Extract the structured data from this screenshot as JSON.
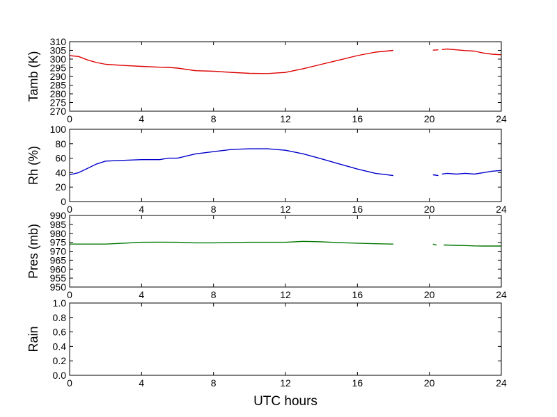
{
  "chart_data": [
    {
      "type": "line",
      "ylabel": "Tamb (K)",
      "xlabel": "",
      "xlim": [
        0,
        24
      ],
      "ylim": [
        270,
        310
      ],
      "xticks": [
        0,
        4,
        8,
        12,
        16,
        20,
        24
      ],
      "yticks": [
        270,
        275,
        280,
        285,
        290,
        295,
        300,
        305,
        310
      ],
      "grid": false,
      "series": [
        {
          "color": "#dd0000",
          "segments": [
            {
              "x": [
                0,
                0.5,
                1,
                1.5,
                2,
                3,
                4,
                5,
                5.5,
                6,
                7,
                8,
                9,
                10,
                11,
                12,
                13,
                14,
                15,
                16,
                17,
                18
              ],
              "y": [
                302,
                301.5,
                299.5,
                298,
                297,
                296.3,
                295.8,
                295.3,
                295.2,
                294.8,
                293.3,
                293,
                292.3,
                291.8,
                291.7,
                292.3,
                294.5,
                297,
                299.5,
                302,
                304,
                305
              ]
            },
            {
              "x": [
                20.2,
                20.5
              ],
              "y": [
                305.1,
                305.3
              ]
            },
            {
              "x": [
                20.7,
                21,
                21.5,
                22,
                22.5,
                23,
                23.5,
                24
              ],
              "y": [
                305.5,
                305.8,
                305.3,
                304.9,
                304.6,
                303.5,
                302.8,
                302.5
              ]
            }
          ]
        }
      ]
    },
    {
      "type": "line",
      "ylabel": "Rh (%)",
      "xlabel": "",
      "xlim": [
        0,
        24
      ],
      "ylim": [
        0,
        100
      ],
      "xticks": [
        0,
        4,
        8,
        12,
        16,
        20,
        24
      ],
      "yticks": [
        0,
        20,
        40,
        60,
        80,
        100
      ],
      "grid": false,
      "series": [
        {
          "color": "#0000cc",
          "segments": [
            {
              "x": [
                0,
                0.5,
                1,
                1.5,
                2,
                3,
                4,
                5,
                5.5,
                6,
                7,
                8,
                9,
                10,
                11,
                12,
                13,
                14,
                15,
                16,
                17,
                18
              ],
              "y": [
                37,
                40,
                46,
                52,
                56,
                57,
                58,
                58,
                60,
                60,
                66,
                69,
                72,
                73,
                73,
                71,
                66,
                59,
                52,
                45,
                39,
                36
              ]
            },
            {
              "x": [
                20.2,
                20.5
              ],
              "y": [
                37,
                36
              ]
            },
            {
              "x": [
                20.7,
                21,
                21.5,
                22,
                22.5,
                23,
                23.5,
                24
              ],
              "y": [
                38,
                39,
                38,
                39,
                38,
                40,
                42,
                43
              ]
            }
          ]
        }
      ]
    },
    {
      "type": "line",
      "ylabel": "Pres (mb)",
      "xlabel": "",
      "xlim": [
        0,
        24
      ],
      "ylim": [
        950,
        990
      ],
      "xticks": [
        0,
        4,
        8,
        12,
        16,
        20,
        24
      ],
      "yticks": [
        950,
        955,
        960,
        965,
        970,
        975,
        980,
        985,
        990
      ],
      "grid": false,
      "series": [
        {
          "color": "#007700",
          "segments": [
            {
              "x": [
                0,
                1,
                2,
                3,
                4,
                5,
                6,
                7,
                8,
                9,
                10,
                11,
                12,
                13,
                14,
                15,
                16,
                17,
                18
              ],
              "y": [
                974,
                974,
                974,
                974.5,
                975,
                975.1,
                975,
                974.7,
                974.7,
                974.9,
                975,
                975,
                975,
                975.5,
                975.3,
                974.8,
                974.5,
                974.2,
                974
              ]
            },
            {
              "x": [
                20.2,
                20.4
              ],
              "y": [
                974,
                973.4
              ]
            },
            {
              "x": [
                20.8,
                21.5,
                22,
                22.5,
                23,
                23.5,
                24
              ],
              "y": [
                973.5,
                973.3,
                973.2,
                973,
                972.9,
                972.9,
                972.9
              ]
            }
          ]
        }
      ]
    },
    {
      "type": "line",
      "ylabel": "Rain",
      "xlabel": "UTC hours",
      "xlim": [
        0,
        24
      ],
      "ylim": [
        0,
        1
      ],
      "xticks": [
        0,
        4,
        8,
        12,
        16,
        20,
        24
      ],
      "yticks": [
        0.0,
        0.2,
        0.4,
        0.6,
        0.8,
        1.0
      ],
      "ytick_labels": [
        "0.0",
        "0.2",
        "0.4",
        "0.6",
        "0.8",
        "1.0"
      ],
      "grid": false,
      "series": []
    }
  ]
}
